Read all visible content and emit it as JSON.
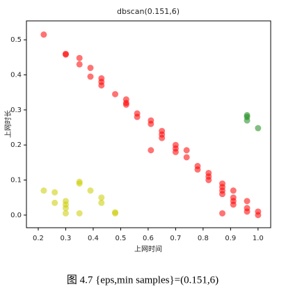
{
  "chart_data": {
    "type": "scatter",
    "title": "dbscan(0.151,6)",
    "x_label": "上网时间",
    "y_label": "上网时长",
    "xlim": [
      0.157,
      1.046
    ],
    "ylim": [
      -0.036,
      0.554
    ],
    "xticks": [
      0.2,
      0.3,
      0.4,
      0.5,
      0.6,
      0.7,
      0.8,
      0.9,
      {
        "value": 1,
        "label": "1.0"
      }
    ],
    "yticks": [
      {
        "value": 0,
        "label": "0.0"
      },
      0.1,
      0.2,
      0.3,
      0.4,
      0.5
    ],
    "series": [
      {
        "color": "#ff0000",
        "x": [
          0.22,
          0.3,
          0.3,
          0.35,
          0.35,
          0.39,
          0.39,
          0.43,
          0.43,
          0.43,
          0.48,
          0.52,
          0.52,
          0.52,
          0.56,
          0.56,
          0.61,
          0.61,
          0.61,
          0.65,
          0.65,
          0.65,
          0.7,
          0.7,
          0.7,
          0.74,
          0.74,
          0.78,
          0.78,
          0.82,
          0.82,
          0.82,
          0.87,
          0.87,
          0.87,
          0.87,
          0.87,
          0.91,
          0.91,
          0.91,
          0.91,
          0.96,
          0.96,
          0.96,
          1.0,
          1.0
        ],
        "values": [
          0.515,
          0.46,
          0.458,
          0.448,
          0.43,
          0.42,
          0.395,
          0.39,
          0.38,
          0.37,
          0.345,
          0.33,
          0.32,
          0.315,
          0.29,
          0.28,
          0.27,
          0.26,
          0.185,
          0.24,
          0.23,
          0.22,
          0.2,
          0.19,
          0.18,
          0.185,
          0.165,
          0.14,
          0.13,
          0.12,
          0.11,
          0.1,
          0.09,
          0.08,
          0.07,
          0.06,
          0.005,
          0.07,
          0.05,
          0.04,
          0.03,
          0.04,
          0.02,
          0.01,
          0.01,
          0.0
        ]
      },
      {
        "color": "#cccc00",
        "x": [
          0.22,
          0.26,
          0.26,
          0.3,
          0.3,
          0.3,
          0.3,
          0.35,
          0.35,
          0.35,
          0.39,
          0.43,
          0.43,
          0.48,
          0.48
        ],
        "values": [
          0.07,
          0.065,
          0.035,
          0.04,
          0.03,
          0.02,
          0.005,
          0.095,
          0.09,
          0.005,
          0.07,
          0.05,
          0.035,
          0.005,
          0.008
        ]
      },
      {
        "color": "#1a8a1a",
        "x": [
          0.96,
          0.96,
          0.96,
          1.0
        ],
        "values": [
          0.285,
          0.28,
          0.27,
          0.248
        ]
      }
    ]
  },
  "caption": "图 4.7  {eps,min  samples}=(0.151,6)"
}
